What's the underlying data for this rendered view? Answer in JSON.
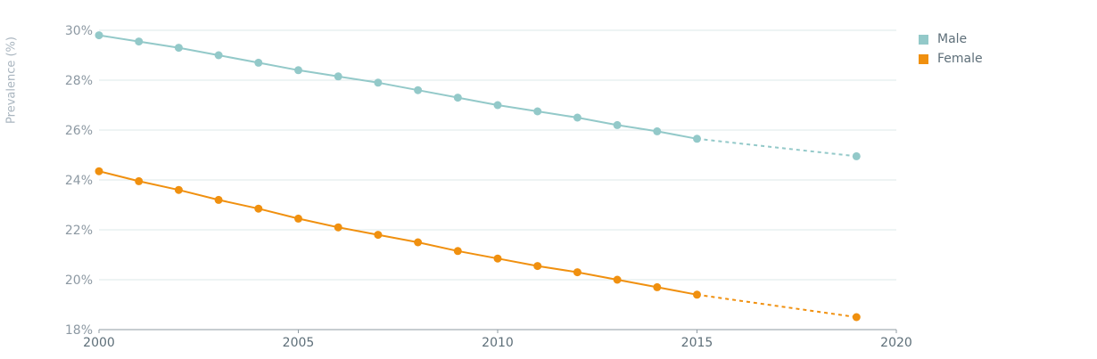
{
  "chart_data": {
    "type": "line",
    "title": "",
    "xlabel": "",
    "ylabel": "Prevalence (%)",
    "xlim": [
      2000,
      2020
    ],
    "ylim": [
      18,
      30
    ],
    "x_ticks": [
      2000,
      2005,
      2010,
      2015,
      2020
    ],
    "x_tick_labels": [
      "2000",
      "2005",
      "2010",
      "2015",
      "2020"
    ],
    "y_ticks": [
      18,
      20,
      22,
      24,
      26,
      28,
      30
    ],
    "y_tick_labels": [
      "18%",
      "20%",
      "22%",
      "24%",
      "26%",
      "28%",
      "30%"
    ],
    "grid": "horizontal",
    "legend_position": "top-right",
    "series": [
      {
        "name": "Male",
        "color": "#93c9c9",
        "x": [
          2000,
          2001,
          2002,
          2003,
          2004,
          2005,
          2006,
          2007,
          2008,
          2009,
          2010,
          2011,
          2012,
          2013,
          2014,
          2015
        ],
        "values": [
          29.8,
          29.55,
          29.3,
          29.0,
          28.7,
          28.4,
          28.15,
          27.9,
          27.6,
          27.3,
          27.0,
          26.75,
          26.5,
          26.2,
          25.95,
          25.65
        ],
        "projected_x": [
          2019
        ],
        "projected_values": [
          24.95
        ]
      },
      {
        "name": "Female",
        "color": "#f0900f",
        "x": [
          2000,
          2001,
          2002,
          2003,
          2004,
          2005,
          2006,
          2007,
          2008,
          2009,
          2010,
          2011,
          2012,
          2013,
          2014,
          2015
        ],
        "values": [
          24.35,
          23.95,
          23.6,
          23.2,
          22.85,
          22.45,
          22.1,
          21.8,
          21.5,
          21.15,
          20.85,
          20.55,
          20.3,
          20.0,
          19.7,
          19.4
        ],
        "projected_x": [
          2019
        ],
        "projected_values": [
          18.5
        ]
      }
    ]
  }
}
